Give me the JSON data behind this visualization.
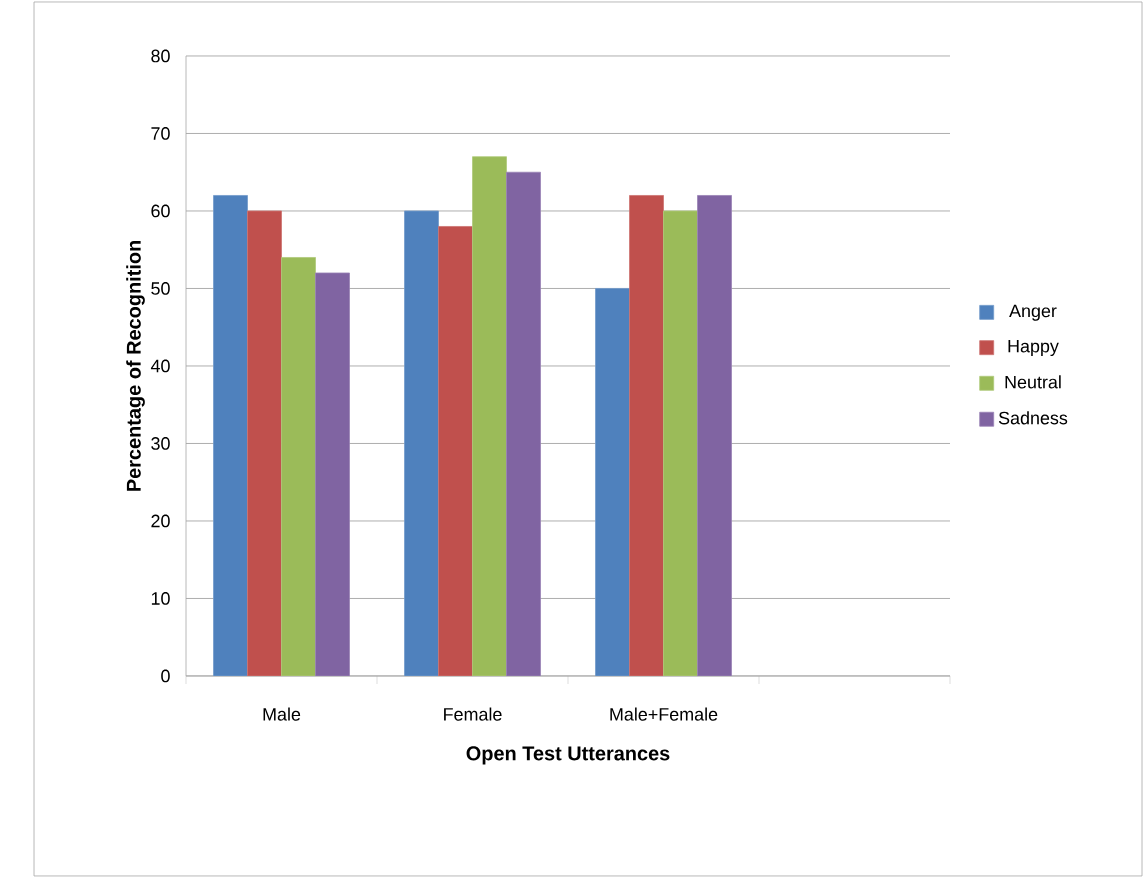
{
  "chart_data": {
    "type": "bar",
    "xlabel": "Open Test Utterances",
    "ylabel": "Percentage of Recognition",
    "categories": [
      "Male",
      "Female",
      "Male+Female",
      null
    ],
    "series": [
      {
        "name": "Anger",
        "color": "#4f81bd",
        "values": [
          62,
          60,
          50,
          null
        ]
      },
      {
        "name": "Happy",
        "color": "#c0504d",
        "values": [
          60,
          58,
          62,
          null
        ]
      },
      {
        "name": "Neutral",
        "color": "#9bbb59",
        "values": [
          54,
          67,
          60,
          null
        ]
      },
      {
        "name": "Sadness",
        "color": "#8064a2",
        "values": [
          52,
          65,
          62,
          null
        ]
      }
    ],
    "ylim": [
      0,
      80
    ],
    "yticks": [
      0,
      10,
      20,
      30,
      40,
      50,
      60,
      70,
      80
    ],
    "grid": "y",
    "legend": "right"
  }
}
